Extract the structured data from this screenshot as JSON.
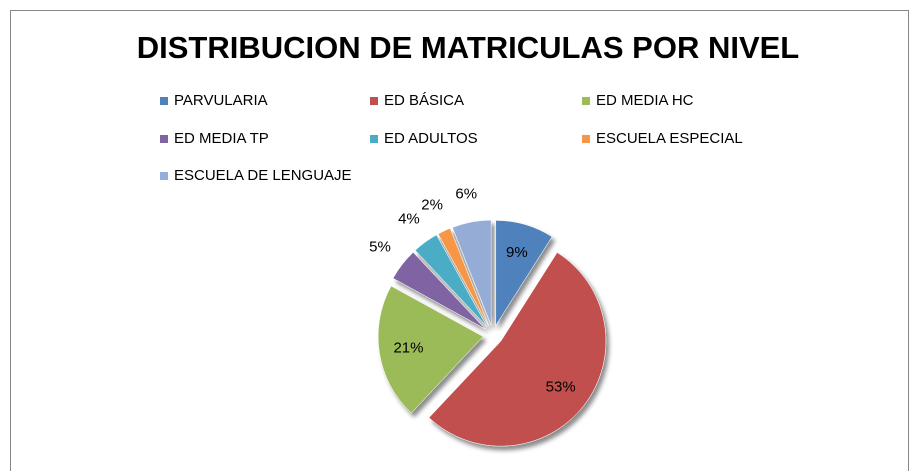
{
  "chart_data": {
    "type": "pie",
    "title": "DISTRIBUCION DE MATRICULAS POR NIVEL",
    "categories": [
      "PARVULARIA",
      "ED BÁSICA",
      "ED MEDIA HC",
      "ED MEDIA TP",
      "ED ADULTOS",
      "ESCUELA ESPECIAL",
      "ESCUELA DE LENGUAJE"
    ],
    "values": [
      9,
      53,
      21,
      5,
      4,
      2,
      6
    ],
    "value_labels": [
      "9%",
      "53%",
      "21%",
      "5%",
      "4%",
      "2%",
      "6%"
    ],
    "colors": [
      "#4f81bd",
      "#c0504d",
      "#9bbb59",
      "#8064a2",
      "#4bacc6",
      "#f79646",
      "#95acd7"
    ],
    "legend": "top"
  }
}
